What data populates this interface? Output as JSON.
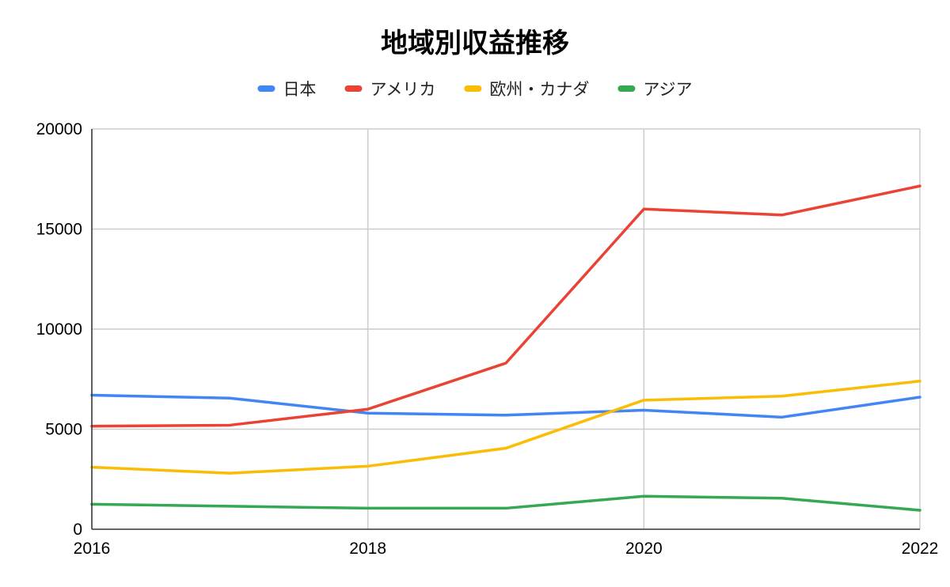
{
  "chart_data": {
    "type": "line",
    "title": "地域別収益推移",
    "x": [
      2016,
      2017,
      2018,
      2019,
      2020,
      2021,
      2022
    ],
    "x_tick_labels": [
      "2016",
      "2018",
      "2020",
      "2022"
    ],
    "y_tick_labels": [
      "0",
      "5000",
      "10000",
      "15000",
      "20000"
    ],
    "ylim": [
      0,
      20000
    ],
    "xlim": [
      2016,
      2022
    ],
    "grid": true,
    "legend_position": "top",
    "xlabel": "",
    "ylabel": "",
    "series": [
      {
        "name": "日本",
        "color": "#4285F4",
        "values": [
          6700,
          6550,
          5800,
          5700,
          5950,
          5600,
          6600
        ]
      },
      {
        "name": "アメリカ",
        "color": "#EA4335",
        "values": [
          5150,
          5200,
          6000,
          8300,
          16000,
          15700,
          17150
        ]
      },
      {
        "name": "欧州・カナダ",
        "color": "#FBBC04",
        "values": [
          3100,
          2800,
          3150,
          4050,
          6450,
          6650,
          7400
        ]
      },
      {
        "name": "アジア",
        "color": "#34A853",
        "values": [
          1250,
          1150,
          1050,
          1050,
          1650,
          1550,
          950
        ]
      }
    ]
  }
}
